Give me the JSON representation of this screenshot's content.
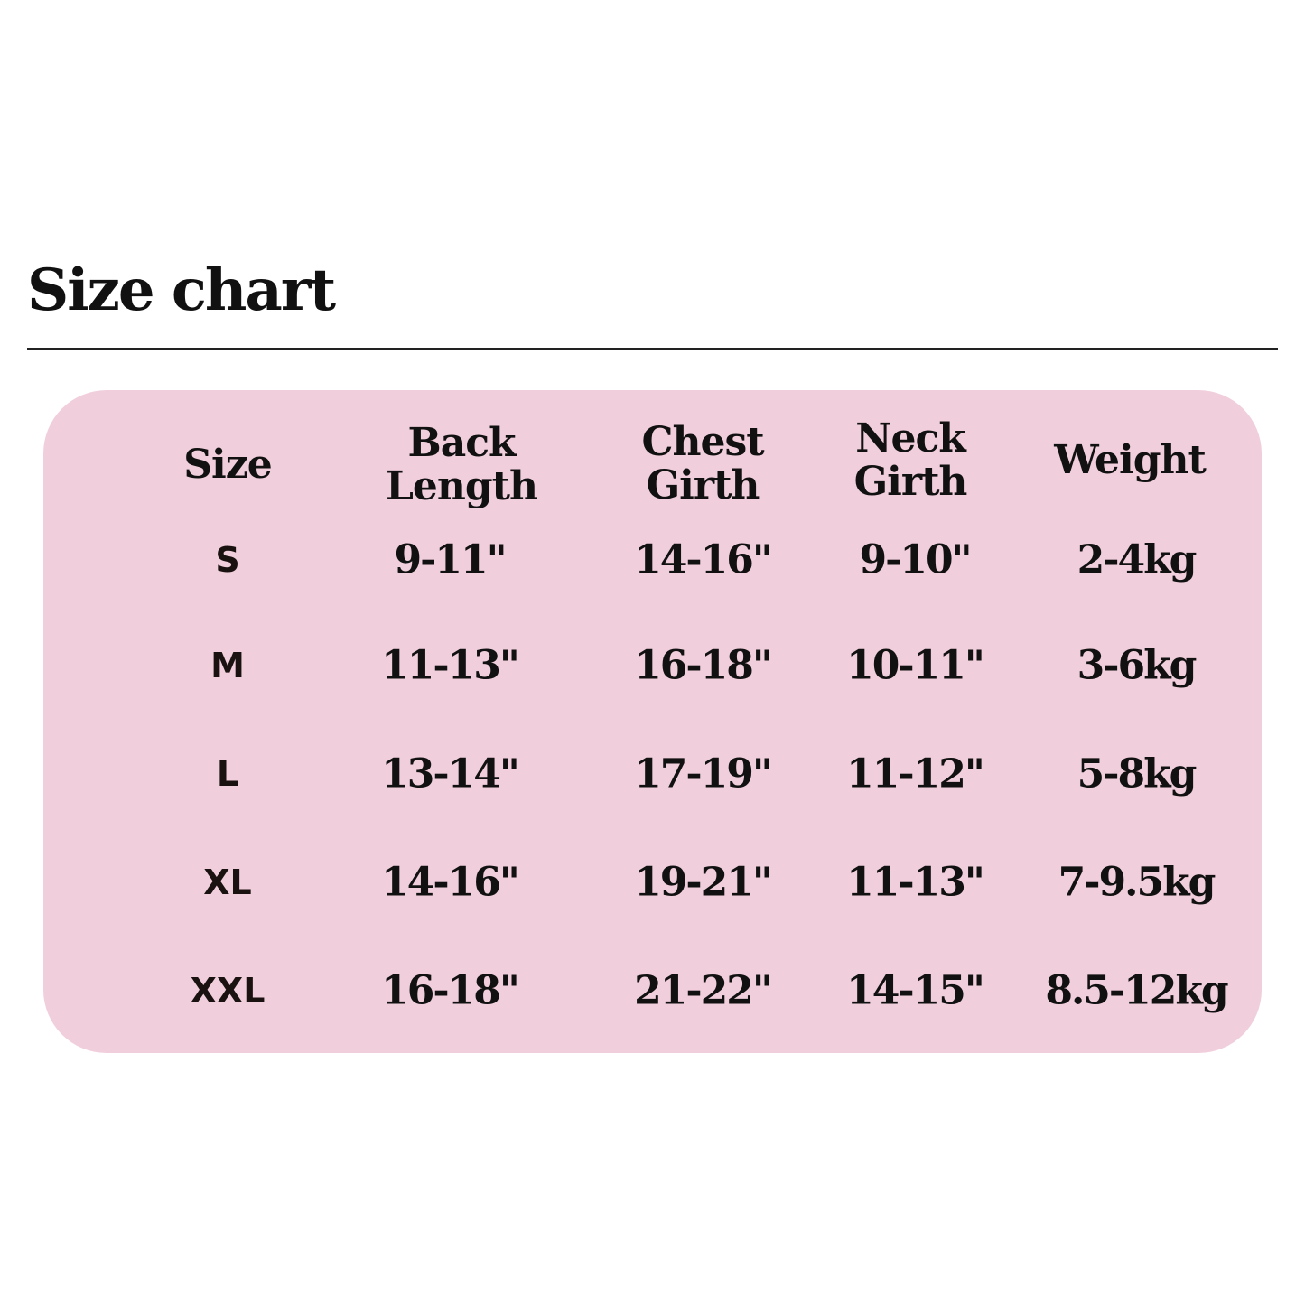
{
  "title": "Size chart",
  "colors": {
    "panel": "#f1cedc",
    "text": "#111111"
  },
  "headers": [
    {
      "line1": "Size",
      "line2": ""
    },
    {
      "line1": "Back",
      "line2": "Length"
    },
    {
      "line1": "Chest",
      "line2": "Girth"
    },
    {
      "line1": "Neck",
      "line2": "Girth"
    },
    {
      "line1": "Weight",
      "line2": ""
    }
  ],
  "rows": [
    {
      "size": "S",
      "back_length": "9-11\"",
      "chest_girth": "14-16\"",
      "neck_girth": "9-10\"",
      "weight": "2-4kg"
    },
    {
      "size": "M",
      "back_length": "11-13\"",
      "chest_girth": "16-18\"",
      "neck_girth": "10-11\"",
      "weight": "3-6kg"
    },
    {
      "size": "L",
      "back_length": "13-14\"",
      "chest_girth": "17-19\"",
      "neck_girth": "11-12\"",
      "weight": "5-8kg"
    },
    {
      "size": "XL",
      "back_length": "14-16\"",
      "chest_girth": "19-21\"",
      "neck_girth": "11-13\"",
      "weight": "7-9.5kg"
    },
    {
      "size": "XXL",
      "back_length": "16-18\"",
      "chest_girth": "21-22\"",
      "neck_girth": "14-15\"",
      "weight": "8.5-12kg"
    }
  ]
}
